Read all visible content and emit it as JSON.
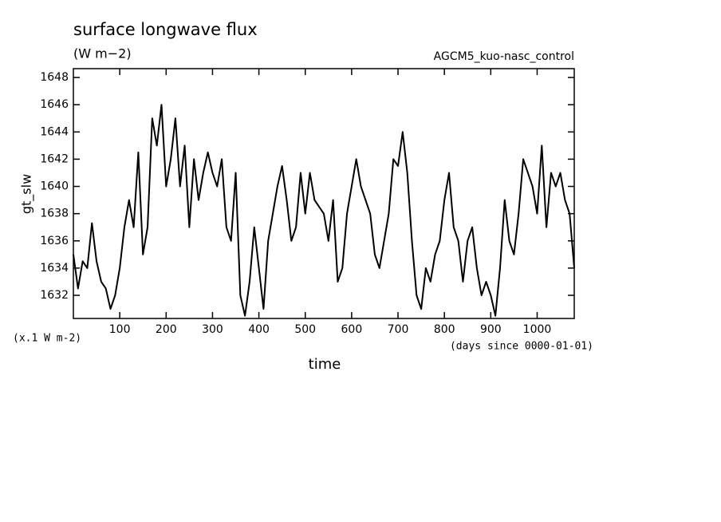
{
  "chart_data": {
    "type": "line",
    "title": "surface longwave flux",
    "subtitle": "(W m−2)",
    "annotation": "AGCM5_kuo-nasc_control",
    "ylabel": "gt_slw",
    "yunits": "(x.1 W m-2)",
    "xlabel": "time",
    "xunits": "(days since 0000-01-01)",
    "xlim": [
      0,
      1080
    ],
    "ylim": [
      1630.3,
      1648.65
    ],
    "xticks": [
      100,
      200,
      300,
      400,
      500,
      600,
      700,
      800,
      900,
      1000
    ],
    "yticks": [
      1632,
      1634,
      1636,
      1638,
      1640,
      1642,
      1644,
      1646,
      1648
    ],
    "series": [
      {
        "color": "#000000",
        "x": [
          0,
          10,
          20,
          30,
          40,
          50,
          60,
          70,
          80,
          90,
          100,
          110,
          120,
          130,
          140,
          150,
          160,
          170,
          180,
          190,
          200,
          210,
          220,
          230,
          240,
          250,
          260,
          270,
          280,
          290,
          300,
          310,
          320,
          330,
          340,
          350,
          360,
          370,
          380,
          390,
          400,
          410,
          420,
          430,
          440,
          450,
          460,
          470,
          480,
          490,
          500,
          510,
          520,
          530,
          540,
          550,
          560,
          570,
          580,
          590,
          600,
          610,
          620,
          630,
          640,
          650,
          660,
          670,
          680,
          690,
          700,
          710,
          720,
          730,
          740,
          750,
          760,
          770,
          780,
          790,
          800,
          810,
          820,
          830,
          840,
          850,
          860,
          870,
          880,
          890,
          900,
          910,
          920,
          930,
          940,
          950,
          960,
          970,
          980,
          990,
          1000,
          1010,
          1020,
          1030,
          1040,
          1050,
          1060,
          1070,
          1080
        ],
        "values": [
          1635,
          1632.5,
          1634.5,
          1634,
          1637.3,
          1634.5,
          1633,
          1632.5,
          1631,
          1632,
          1634,
          1637,
          1639,
          1637,
          1642.5,
          1635,
          1637,
          1645,
          1643,
          1646,
          1640,
          1642,
          1645,
          1640,
          1643,
          1637,
          1642,
          1639,
          1641,
          1642.5,
          1641,
          1640,
          1642,
          1637,
          1636,
          1641,
          1632,
          1630.5,
          1633,
          1637,
          1634,
          1631,
          1636,
          1638,
          1640,
          1641.5,
          1639,
          1636,
          1637,
          1641,
          1638,
          1641,
          1639,
          1638.5,
          1638,
          1636,
          1639,
          1633,
          1634,
          1638,
          1640,
          1642,
          1640,
          1639,
          1638,
          1635,
          1634,
          1636,
          1638,
          1642,
          1641.5,
          1644,
          1641,
          1636,
          1632,
          1631,
          1634,
          1633,
          1635,
          1636,
          1639,
          1641,
          1637,
          1636,
          1633,
          1636,
          1637,
          1634,
          1632,
          1633,
          1632,
          1630.5,
          1634,
          1639,
          1636,
          1635,
          1638,
          1642,
          1641,
          1640,
          1638,
          1643,
          1637,
          1641,
          1640,
          1641,
          1639,
          1638,
          1634
        ]
      }
    ]
  }
}
